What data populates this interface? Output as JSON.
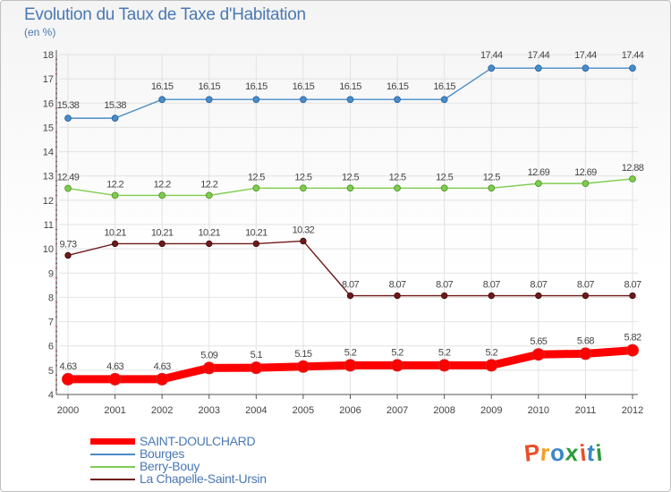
{
  "title": "Evolution du Taux de Taxe d'Habitation",
  "unit": "(en %)",
  "logo": {
    "text": "Proxiti",
    "colors": [
      "#e8502a",
      "#f0a020",
      "#3a88c8",
      "#2e9a3c",
      "#e8502a",
      "#3a88c8",
      "#2e9a3c"
    ]
  },
  "chart_data": {
    "type": "line",
    "title": "Evolution du Taux de Taxe d'Habitation",
    "ylabel": "(en %)",
    "xlabel": "",
    "x": [
      2000,
      2001,
      2002,
      2003,
      2004,
      2005,
      2006,
      2007,
      2008,
      2009,
      2010,
      2011,
      2012
    ],
    "x_labels": [
      "2000",
      "2001",
      "2002",
      "2003",
      "2004",
      "2005",
      "2006",
      "2007",
      "2008",
      "2009",
      "2010",
      "2011",
      "2012"
    ],
    "ylim": [
      4,
      18
    ],
    "y_ticks": [
      "4",
      "5",
      "6",
      "7",
      "8",
      "9",
      "10",
      "11",
      "12",
      "13",
      "14",
      "15",
      "16",
      "17",
      "18"
    ],
    "grid": true,
    "legend_position": "bottom-left",
    "series": [
      {
        "name": "SAINT-DOULCHARD",
        "color": "#ff0000",
        "values": [
          4.63,
          4.63,
          4.63,
          5.09,
          5.1,
          5.15,
          5.2,
          5.2,
          5.2,
          5.2,
          5.65,
          5.68,
          5.82
        ],
        "labels": [
          "4.63",
          "4.63",
          "4.63",
          "5.09",
          "5.1",
          "5.15",
          "5.2",
          "5.2",
          "5.2",
          "5.2",
          "5.65",
          "5.68",
          "5.82"
        ]
      },
      {
        "name": "Bourges",
        "color": "#4a8cc8",
        "values": [
          15.38,
          15.38,
          16.15,
          16.15,
          16.15,
          16.15,
          16.15,
          16.15,
          16.15,
          17.44,
          17.44,
          17.44,
          17.44
        ],
        "labels": [
          "15.38",
          "15.38",
          "16.15",
          "16.15",
          "16.15",
          "16.15",
          "16.15",
          "16.15",
          "16.15",
          "17.44",
          "17.44",
          "17.44",
          "17.44"
        ]
      },
      {
        "name": "Berry-Bouy",
        "color": "#80cc50",
        "values": [
          12.49,
          12.2,
          12.2,
          12.2,
          12.5,
          12.5,
          12.5,
          12.5,
          12.5,
          12.5,
          12.69,
          12.69,
          12.88
        ],
        "labels": [
          "12.49",
          "12.2",
          "12.2",
          "12.2",
          "12.5",
          "12.5",
          "12.5",
          "12.5",
          "12.5",
          "12.5",
          "12.69",
          "12.69",
          "12.88"
        ]
      },
      {
        "name": "La Chapelle-Saint-Ursin",
        "color": "#6e1a1a",
        "values": [
          9.73,
          10.21,
          10.21,
          10.21,
          10.21,
          10.32,
          8.07,
          8.07,
          8.07,
          8.07,
          8.07,
          8.07,
          8.07
        ],
        "labels": [
          "9.73",
          "10.21",
          "10.21",
          "10.21",
          "10.21",
          "10.32",
          "8.07",
          "8.07",
          "8.07",
          "8.07",
          "8.07",
          "8.07",
          "8.07"
        ]
      }
    ]
  }
}
